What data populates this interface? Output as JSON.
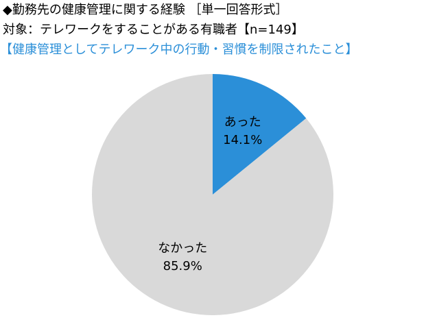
{
  "chart_data": {
    "type": "pie",
    "title": "◆勤務先の健康管理に関する経験 ［単一回答形式］",
    "subtitle": "対象：テレワークをすることがある有職者【n=149】",
    "caption": "【健康管理としてテレワーク中の行動・習慣を制限されたこと】",
    "categories": [
      "あった",
      "なかった"
    ],
    "values": [
      14.1,
      85.9
    ],
    "value_labels": [
      "14.1%",
      "85.9%"
    ],
    "colors": [
      "#2b8fd8",
      "#d9d9d9"
    ]
  }
}
